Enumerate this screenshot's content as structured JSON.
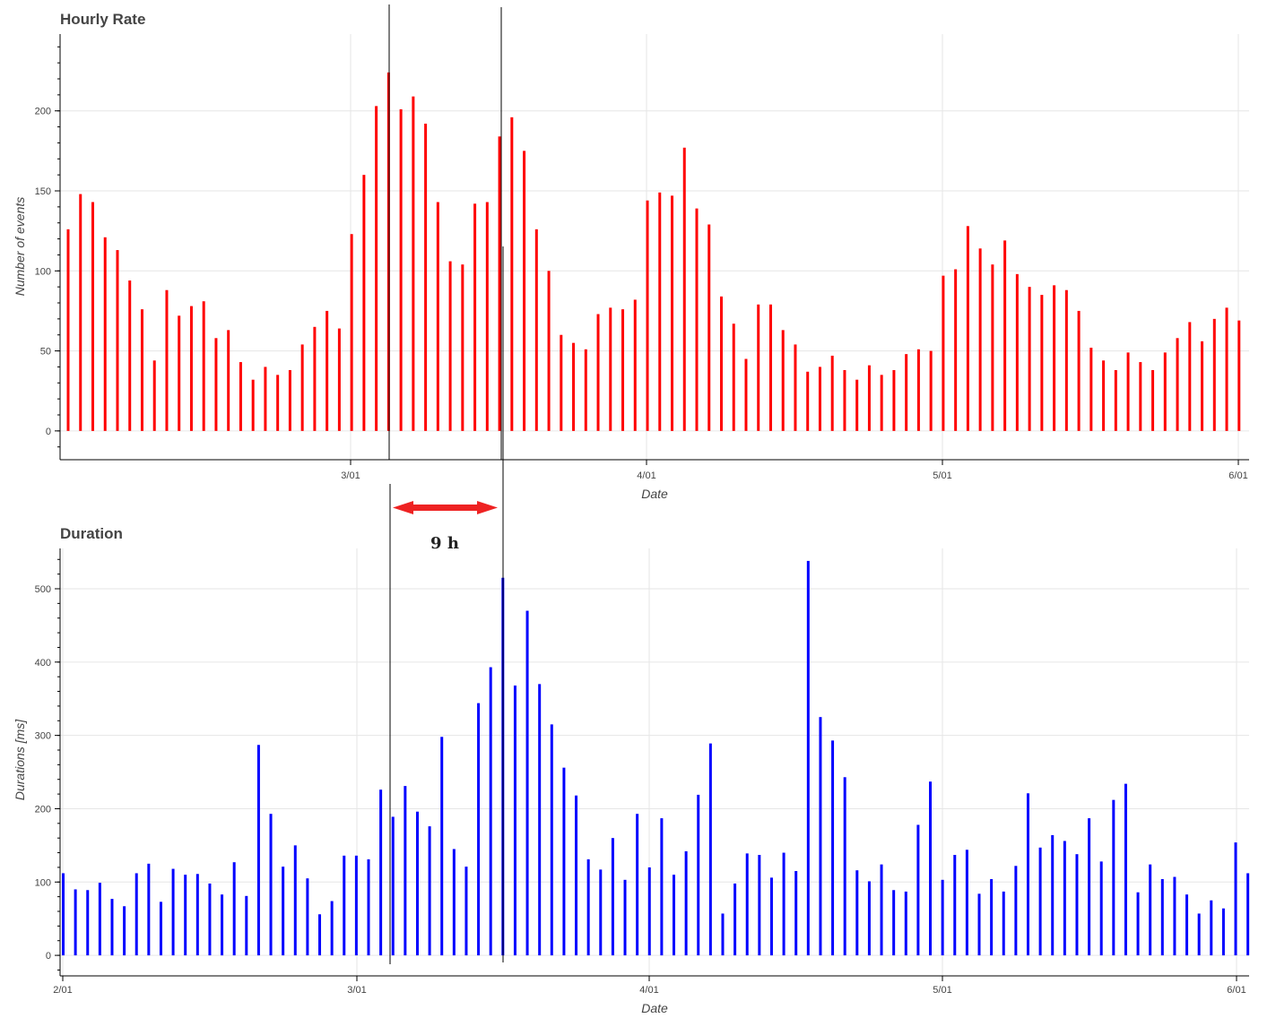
{
  "chart_data": [
    {
      "type": "bar",
      "title": "Hourly Rate",
      "xlabel": "Date",
      "ylabel": "Number of events",
      "color": "#ff0000",
      "x_tick_labels": [
        "3/01",
        "4/01",
        "5/01",
        "6/01"
      ],
      "y_ticks": [
        0,
        50,
        100,
        150,
        200
      ],
      "ylim": [
        -18,
        248
      ],
      "values": [
        126,
        148,
        143,
        121,
        113,
        94,
        76,
        44,
        88,
        72,
        78,
        81,
        58,
        63,
        43,
        32,
        40,
        35,
        38,
        54,
        65,
        75,
        64,
        123,
        160,
        203,
        224,
        201,
        209,
        192,
        143,
        106,
        104,
        142,
        143,
        184,
        196,
        175,
        126,
        100,
        60,
        55,
        51,
        73,
        77,
        76,
        82,
        144,
        149,
        147,
        177,
        139,
        129,
        84,
        67,
        45,
        79,
        79,
        63,
        54,
        37,
        40,
        47,
        38,
        32,
        41,
        35,
        38,
        48,
        51,
        50,
        97,
        101,
        128,
        114,
        104,
        119,
        98,
        90,
        85,
        91,
        88,
        75,
        52,
        44,
        38,
        49,
        43,
        38,
        49,
        58,
        68,
        56,
        70,
        77,
        69
      ]
    },
    {
      "type": "bar",
      "title": "Duration",
      "xlabel": "Date",
      "ylabel": "Durations [ms]",
      "color": "#0000ff",
      "x_tick_labels": [
        "2/01",
        "3/01",
        "4/01",
        "5/01",
        "6/01"
      ],
      "y_ticks": [
        0,
        100,
        200,
        300,
        400,
        500
      ],
      "ylim": [
        -28,
        555
      ],
      "values": [
        112,
        90,
        89,
        99,
        77,
        67,
        112,
        125,
        73,
        118,
        110,
        111,
        98,
        83,
        127,
        81,
        287,
        193,
        121,
        150,
        105,
        56,
        74,
        136,
        136,
        131,
        226,
        189,
        231,
        196,
        176,
        298,
        145,
        121,
        344,
        393,
        515,
        368,
        470,
        370,
        315,
        256,
        218,
        131,
        117,
        160,
        103,
        193,
        120,
        187,
        110,
        142,
        219,
        289,
        57,
        98,
        139,
        137,
        106,
        140,
        115,
        538,
        325,
        293,
        243,
        116,
        101,
        124,
        89,
        87,
        178,
        237,
        103,
        137,
        144,
        84,
        104,
        87,
        122,
        221,
        147,
        164,
        156,
        138,
        187,
        128,
        212,
        234,
        86,
        124,
        104,
        107,
        83,
        57,
        75,
        64,
        154,
        112
      ]
    }
  ],
  "annotation": {
    "label": "9 h",
    "arrow_color": "#ee2222"
  }
}
